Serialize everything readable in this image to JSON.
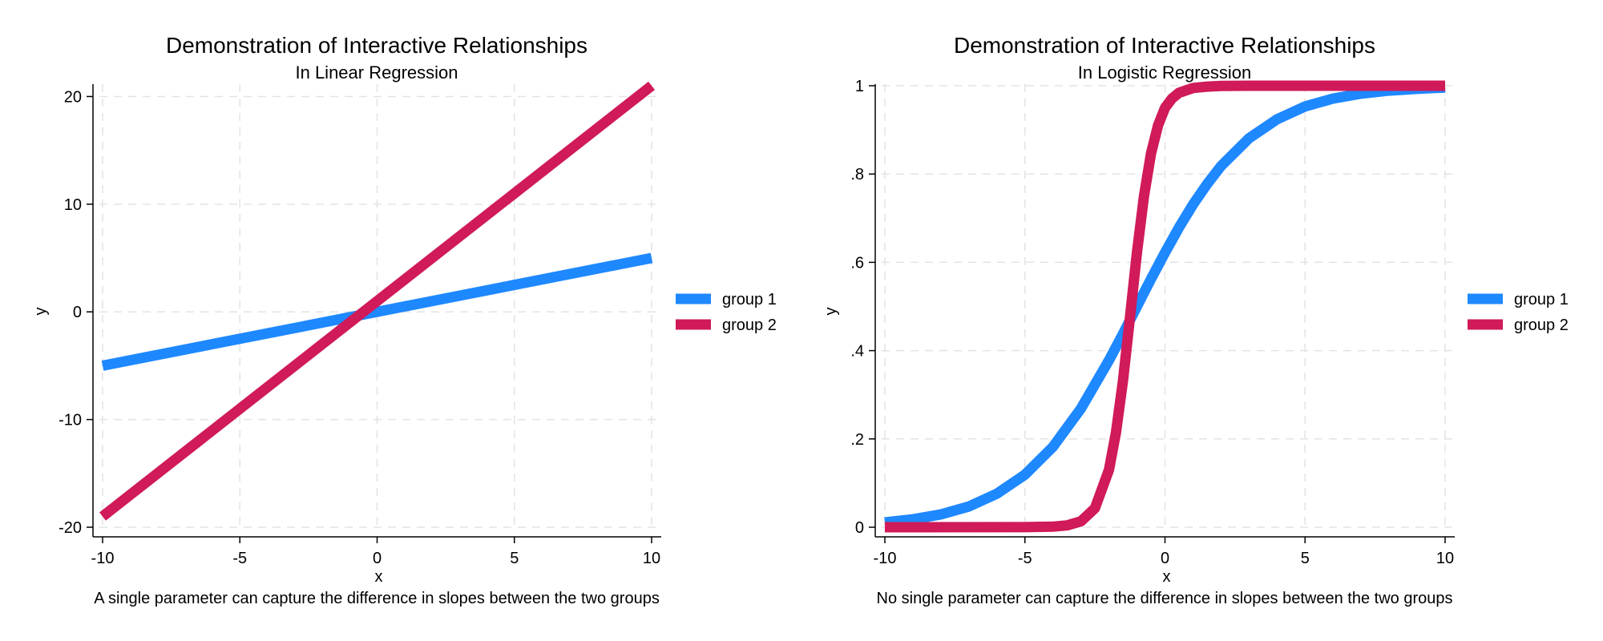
{
  "chart_data": [
    {
      "type": "line",
      "title": "Demonstration of Interactive Relationships",
      "subtitle": "In Linear Regression",
      "xlabel": "x",
      "ylabel": "y",
      "note": "A single parameter can capture the difference in slopes between the two groups",
      "xlim": [
        -10,
        10
      ],
      "ylim": [
        -20,
        21
      ],
      "xticks": [
        -10,
        -5,
        0,
        5,
        10
      ],
      "xtick_labels": [
        "-10",
        "-5",
        "0",
        "5",
        "10"
      ],
      "yticks": [
        -20,
        -10,
        0,
        10,
        20
      ],
      "ytick_labels": [
        "-20",
        "-10",
        "0",
        "10",
        "20"
      ],
      "grid": true,
      "legend": "right",
      "series": [
        {
          "name": "group 1",
          "color": "#1E88FF",
          "x": [
            -10,
            10
          ],
          "y": [
            -5,
            5
          ]
        },
        {
          "name": "group 2",
          "color": "#D01A5A",
          "x": [
            -10,
            10
          ],
          "y": [
            -19,
            21
          ]
        }
      ]
    },
    {
      "type": "line",
      "title": "Demonstration of Interactive Relationships",
      "subtitle": "In Logistic Regression",
      "xlabel": "x",
      "ylabel": "y",
      "note": "No single parameter can capture the difference in slopes between the two groups",
      "xlim": [
        -10,
        10
      ],
      "ylim": [
        0,
        1
      ],
      "xticks": [
        -10,
        -5,
        0,
        5,
        10
      ],
      "xtick_labels": [
        "-10",
        "-5",
        "0",
        "5",
        "10"
      ],
      "yticks": [
        0,
        0.2,
        0.4,
        0.6,
        0.8,
        1
      ],
      "ytick_labels": [
        "0",
        ".2",
        ".4",
        ".6",
        ".8",
        "1"
      ],
      "grid": true,
      "legend": "right",
      "series": [
        {
          "name": "group 1",
          "color": "#1E88FF",
          "x": [
            -10,
            -9,
            -8,
            -7,
            -6,
            -5,
            -4,
            -3,
            -2,
            -1.5,
            -1,
            -0.5,
            0,
            0.5,
            1,
            1.5,
            2,
            3,
            4,
            5,
            6,
            7,
            8,
            9,
            10
          ],
          "y": [
            0.011,
            0.018,
            0.029,
            0.047,
            0.076,
            0.119,
            0.182,
            0.269,
            0.378,
            0.438,
            0.5,
            0.562,
            0.622,
            0.679,
            0.731,
            0.777,
            0.818,
            0.881,
            0.924,
            0.953,
            0.971,
            0.982,
            0.989,
            0.993,
            0.996
          ]
        },
        {
          "name": "group 2",
          "color": "#D01A5A",
          "x": [
            -10,
            -5,
            -4,
            -3.5,
            -3,
            -2.5,
            -2,
            -1.75,
            -1.5,
            -1.25,
            -1,
            -0.75,
            -0.5,
            -0.25,
            0,
            0.25,
            0.5,
            1,
            1.5,
            2,
            3,
            5,
            10
          ],
          "y": [
            0,
            0.0001,
            0.0012,
            0.0041,
            0.0134,
            0.0431,
            0.13,
            0.214,
            0.332,
            0.475,
            0.622,
            0.75,
            0.846,
            0.91,
            0.95,
            0.971,
            0.984,
            0.995,
            0.998,
            0.9995,
            1.0,
            1.0,
            1.0
          ]
        }
      ]
    }
  ]
}
